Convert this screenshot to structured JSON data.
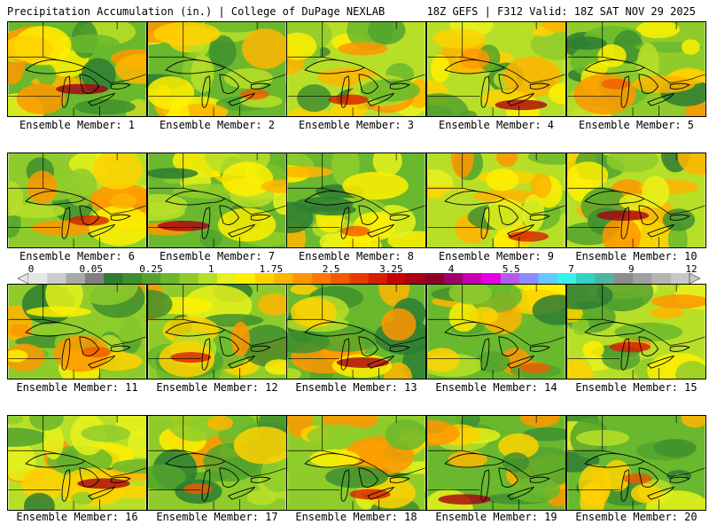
{
  "header": {
    "left_title": "Precipitation Accumulation (in.) | College of DuPage NEXLAB",
    "right_title": "18Z GEFS | F312 Valid: 18Z SAT NOV 29 2025"
  },
  "colorbar": {
    "labels": [
      "0",
      "0.05",
      "0.25",
      "1",
      "1.75",
      "2.5",
      "3.25",
      "4",
      "5.5",
      "7",
      "9",
      "12"
    ],
    "colors": [
      "#e6e6e6",
      "#cccccc",
      "#a8a8a8",
      "#7f7f7f",
      "#2e7d32",
      "#3f8f2f",
      "#52a32e",
      "#6ab82d",
      "#8fcc2b",
      "#b8df28",
      "#e6f21b",
      "#fff000",
      "#ffd200",
      "#ffb400",
      "#ff9600",
      "#ff7800",
      "#f25a00",
      "#e63c00",
      "#d81e00",
      "#c80000",
      "#a80014",
      "#8c0028",
      "#a0006e",
      "#c800b4",
      "#e600e6",
      "#b45af0",
      "#8c8cff",
      "#64c8ff",
      "#3cf0f0",
      "#32d2c8",
      "#50b4a0",
      "#8c8c8c",
      "#a0a0a0",
      "#b4b4b4",
      "#c8c8c8"
    ]
  },
  "members": [
    {
      "label": "Ensemble Member: 1"
    },
    {
      "label": "Ensemble Member: 2"
    },
    {
      "label": "Ensemble Member: 3"
    },
    {
      "label": "Ensemble Member: 4"
    },
    {
      "label": "Ensemble Member: 5"
    },
    {
      "label": "Ensemble Member: 6"
    },
    {
      "label": "Ensemble Member: 7"
    },
    {
      "label": "Ensemble Member: 8"
    },
    {
      "label": "Ensemble Member: 9"
    },
    {
      "label": "Ensemble Member: 10"
    },
    {
      "label": "Ensemble Member: 11"
    },
    {
      "label": "Ensemble Member: 12"
    },
    {
      "label": "Ensemble Member: 13"
    },
    {
      "label": "Ensemble Member: 14"
    },
    {
      "label": "Ensemble Member: 15"
    },
    {
      "label": "Ensemble Member: 16"
    },
    {
      "label": "Ensemble Member: 17"
    },
    {
      "label": "Ensemble Member: 18"
    },
    {
      "label": "Ensemble Member: 19"
    },
    {
      "label": "Ensemble Member: 20"
    }
  ]
}
